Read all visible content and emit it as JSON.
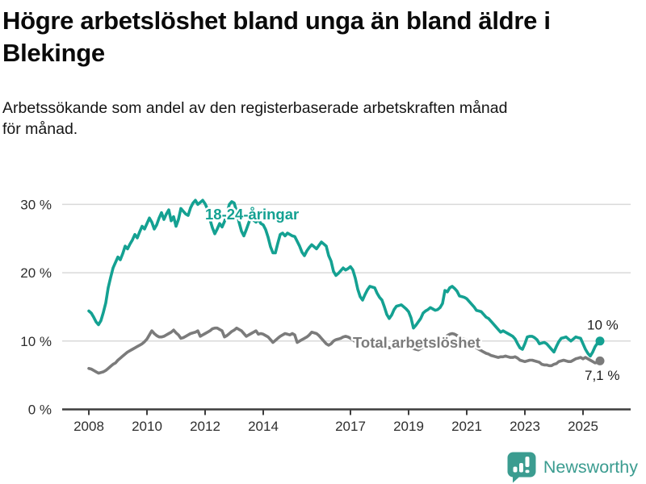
{
  "header": {
    "title_lines": [
      "Högre arbetslöshet bland unga än bland äldre i",
      "Blekinge"
    ],
    "subtitle_lines": [
      "Arbetssökande som andel av den registerbaserade arbetskraften månad",
      "för månad."
    ]
  },
  "branding": {
    "name": "Newsworthy",
    "color": "#3b9c90",
    "icon": "chart-speech-bubble-icon"
  },
  "chart_data": {
    "type": "line",
    "title": "Högre arbetslöshet bland unga än bland äldre i Blekinge",
    "subtitle": "Arbetssökande som andel av den registerbaserade arbetskraften månad för månad.",
    "x_unit": "month",
    "x_start": "2008-01",
    "x_end": "2025-08",
    "x_tick_years": [
      2008,
      2010,
      2012,
      2014,
      2017,
      2019,
      2021,
      2023,
      2025
    ],
    "y_ticks_percent": [
      0,
      10,
      20,
      30
    ],
    "y_tick_suffix": " %",
    "ylim": [
      0,
      32
    ],
    "grid": "horizontal",
    "legend_position": "inline-labels",
    "series": [
      {
        "id": "youth",
        "name": "18-24-åringar",
        "color": "#14a192",
        "end_value_label": "10 %",
        "values": [
          14.4,
          14.1,
          13.5,
          12.8,
          12.4,
          13.0,
          14.2,
          15.6,
          17.8,
          19.3,
          20.7,
          21.5,
          22.3,
          21.9,
          22.8,
          23.9,
          23.5,
          24.2,
          24.8,
          25.6,
          25.1,
          26.0,
          26.8,
          26.4,
          27.2,
          28.0,
          27.4,
          26.4,
          27.0,
          28.0,
          28.8,
          27.8,
          28.6,
          29.2,
          27.6,
          28.2,
          26.8,
          27.8,
          29.4,
          29.0,
          28.6,
          28.4,
          29.5,
          30.2,
          30.6,
          30.0,
          30.3,
          30.6,
          30.1,
          29.3,
          27.8,
          26.6,
          25.7,
          26.4,
          27.2,
          26.7,
          27.5,
          28.6,
          30.0,
          30.4,
          30.2,
          29.0,
          27.4,
          26.1,
          25.4,
          26.3,
          27.3,
          28.2,
          27.7,
          27.4,
          27.8,
          27.2,
          27.0,
          26.3,
          25.2,
          23.8,
          22.9,
          22.9,
          24.3,
          25.6,
          25.8,
          25.4,
          25.8,
          25.6,
          25.4,
          25.3,
          24.6,
          23.9,
          23.0,
          22.5,
          23.2,
          23.7,
          24.1,
          23.8,
          23.5,
          24.0,
          24.5,
          24.2,
          23.9,
          22.5,
          21.7,
          20.2,
          19.6,
          19.9,
          20.3,
          20.7,
          20.4,
          20.6,
          20.9,
          20.4,
          19.2,
          17.6,
          16.5,
          16.0,
          16.8,
          17.5,
          18.0,
          17.9,
          17.8,
          17.0,
          16.4,
          16.0,
          15.0,
          13.9,
          13.3,
          13.8,
          14.6,
          15.1,
          15.2,
          15.3,
          15.0,
          14.7,
          14.3,
          13.4,
          11.9,
          12.3,
          12.8,
          13.3,
          14.1,
          14.4,
          14.6,
          14.9,
          14.7,
          14.5,
          14.6,
          14.9,
          15.5,
          17.4,
          17.2,
          17.8,
          18.0,
          17.7,
          17.3,
          16.6,
          16.5,
          16.4,
          16.2,
          15.8,
          15.4,
          15.0,
          14.5,
          14.4,
          14.3,
          13.9,
          13.5,
          13.3,
          12.9,
          12.5,
          12.1,
          11.7,
          11.3,
          11.5,
          11.3,
          11.1,
          10.9,
          10.7,
          10.3,
          9.6,
          9.0,
          8.8,
          9.6,
          10.6,
          10.7,
          10.7,
          10.5,
          10.2,
          9.6,
          9.7,
          9.8,
          9.6,
          9.2,
          8.8,
          8.4,
          9.2,
          9.9,
          10.4,
          10.5,
          10.6,
          10.3,
          10.0,
          10.3,
          10.6,
          10.5,
          10.4,
          9.6,
          8.8,
          8.2,
          7.8,
          8.4,
          9.2,
          9.7,
          10.0
        ]
      },
      {
        "id": "total",
        "name": "Total arbetslöshet",
        "color": "#7b7b7b",
        "end_value_label": "7,1 %",
        "values": [
          6.0,
          5.9,
          5.7,
          5.5,
          5.3,
          5.4,
          5.5,
          5.7,
          6.0,
          6.3,
          6.6,
          6.8,
          7.2,
          7.5,
          7.8,
          8.1,
          8.4,
          8.6,
          8.8,
          9.0,
          9.2,
          9.4,
          9.6,
          9.9,
          10.3,
          10.9,
          11.5,
          11.1,
          10.8,
          10.6,
          10.6,
          10.7,
          10.9,
          11.1,
          11.3,
          11.6,
          11.2,
          10.9,
          10.4,
          10.5,
          10.7,
          10.9,
          11.1,
          11.2,
          11.3,
          11.5,
          10.7,
          10.9,
          11.1,
          11.3,
          11.5,
          11.8,
          11.9,
          11.9,
          11.7,
          11.5,
          10.6,
          10.8,
          11.1,
          11.4,
          11.6,
          11.9,
          11.7,
          11.5,
          11.1,
          10.7,
          10.9,
          11.1,
          11.3,
          11.5,
          11.0,
          11.1,
          11.0,
          10.8,
          10.6,
          10.2,
          9.8,
          10.1,
          10.4,
          10.7,
          10.9,
          11.1,
          11.0,
          10.9,
          11.1,
          10.9,
          9.8,
          10.0,
          10.2,
          10.4,
          10.6,
          10.9,
          11.3,
          11.2,
          11.1,
          10.8,
          10.4,
          10.0,
          9.6,
          9.4,
          9.6,
          10.0,
          10.2,
          10.3,
          10.4,
          10.6,
          10.7,
          10.6,
          10.4,
          10.2,
          9.9,
          9.6,
          9.4,
          9.5,
          9.7,
          9.9,
          10.1,
          10.3,
          10.2,
          10.0,
          9.8,
          9.6,
          9.4,
          9.2,
          9.0,
          9.1,
          9.3,
          9.4,
          9.5,
          9.6,
          9.5,
          9.4,
          9.3,
          9.1,
          8.9,
          8.8,
          8.7,
          8.9,
          9.1,
          9.2,
          9.3,
          9.4,
          9.3,
          9.2,
          9.3,
          9.4,
          9.8,
          10.4,
          10.8,
          11.0,
          11.1,
          11.0,
          10.8,
          10.6,
          10.4,
          10.3,
          10.1,
          9.9,
          9.6,
          9.3,
          9.0,
          8.8,
          8.6,
          8.4,
          8.2,
          8.1,
          7.9,
          7.8,
          7.7,
          7.6,
          7.7,
          7.7,
          7.8,
          7.7,
          7.6,
          7.6,
          7.7,
          7.5,
          7.2,
          7.1,
          7.0,
          7.1,
          7.2,
          7.2,
          7.1,
          7.0,
          6.9,
          6.6,
          6.5,
          6.5,
          6.4,
          6.4,
          6.6,
          6.7,
          7.0,
          7.1,
          7.2,
          7.1,
          7.0,
          7.0,
          7.2,
          7.4,
          7.5,
          7.6,
          7.4,
          7.6,
          7.4,
          7.2,
          7.0,
          6.8,
          6.9,
          7.1
        ]
      }
    ]
  }
}
